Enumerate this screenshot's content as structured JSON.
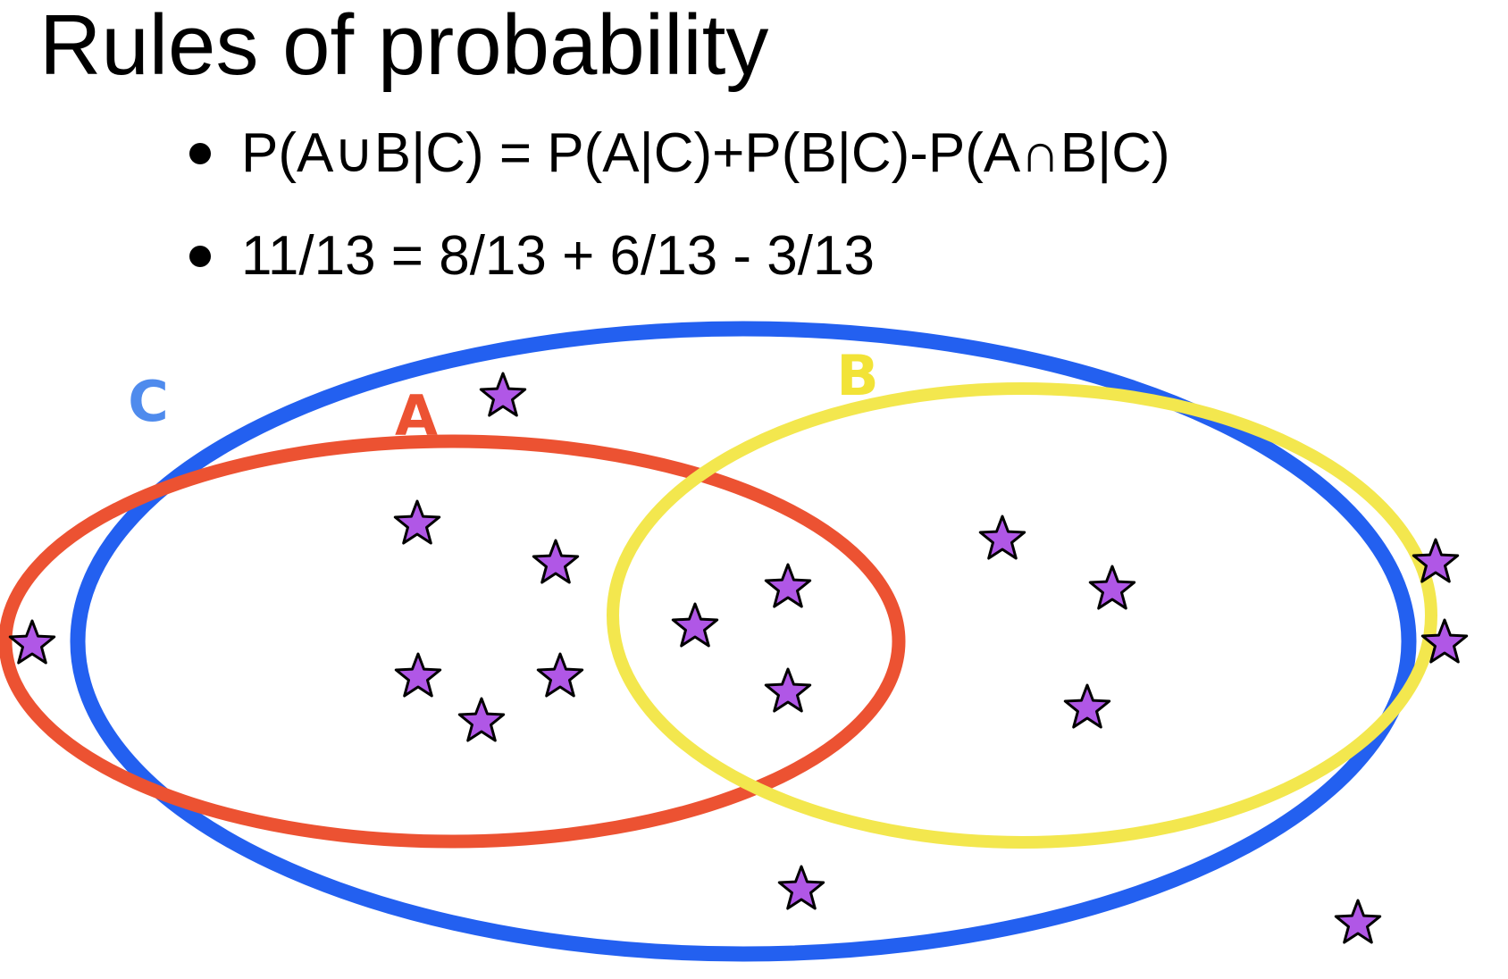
{
  "slide": {
    "title": "Rules of probability",
    "bullets": [
      "P(A∪B|C) = P(A|C)+P(B|C)-P(A∩B|C)",
      "11/13 = 8/13 + 6/13 - 3/13"
    ]
  },
  "diagram": {
    "sets": [
      {
        "id": "C",
        "label": "C",
        "color": "#2360f0"
      },
      {
        "id": "A",
        "label": "A",
        "color": "#ec5232"
      },
      {
        "id": "B",
        "label": "B",
        "color": "#f3e74e"
      }
    ],
    "label_colors": {
      "C": "#4f8bed",
      "A": "#ec5232",
      "B": "#f2e337"
    },
    "star_fill": "#b057e6",
    "star_stroke": "#000000"
  }
}
